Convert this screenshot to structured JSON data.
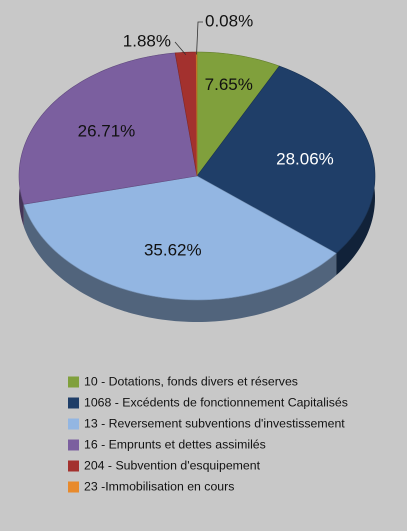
{
  "chart_data": {
    "type": "pie",
    "categories": [
      "10 - Dotations, fonds divers et réserves",
      "1068 - Excédents de fonctionnement Capitalisés",
      "13 - Reversement subventions d'investissement",
      "16 - Emprunts et dettes assimilés",
      "204 - Subvention d'esquipement",
      "23 -Immobilisation en cours"
    ],
    "values": [
      7.65,
      28.06,
      35.62,
      26.71,
      1.88,
      0.08
    ],
    "value_labels": [
      "7.65%",
      "28.06%",
      "35.62%",
      "26.71%",
      "1.88%",
      "0.08%"
    ],
    "colors": [
      "#80a03c",
      "#1f3e68",
      "#93b6e2",
      "#7b5f9f",
      "#a3312e",
      "#e88a2c"
    ],
    "legend": "bottom"
  }
}
